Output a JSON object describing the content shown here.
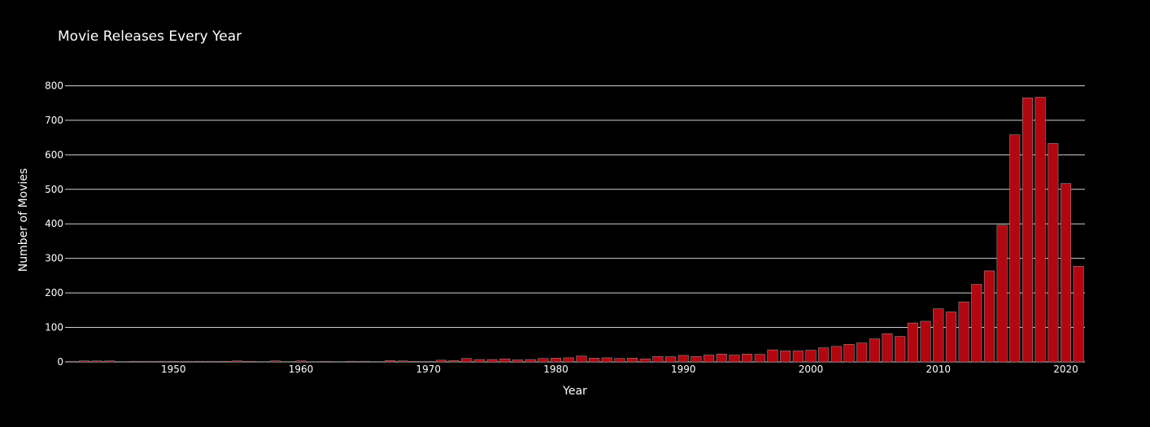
{
  "colors": {
    "background": "#000000",
    "bar": "#b20710",
    "grid": "#d0d0d0",
    "text": "#ffffff"
  },
  "chart_data": {
    "type": "bar",
    "title": "Movie Releases Every Year",
    "xlabel": "Year",
    "ylabel": "Number of Movies",
    "xlim": [
      1942,
      2021.5
    ],
    "ylim": [
      0,
      860
    ],
    "xticks": [
      1950,
      1960,
      1970,
      1980,
      1990,
      2000,
      2010,
      2020
    ],
    "yticks": [
      0,
      100,
      200,
      300,
      400,
      500,
      600,
      700,
      800
    ],
    "grid": true,
    "x": [
      1942,
      1943,
      1944,
      1945,
      1946,
      1947,
      1948,
      1949,
      1950,
      1951,
      1952,
      1953,
      1954,
      1955,
      1956,
      1957,
      1958,
      1959,
      1960,
      1961,
      1962,
      1963,
      1964,
      1965,
      1966,
      1967,
      1968,
      1969,
      1970,
      1971,
      1972,
      1973,
      1974,
      1975,
      1976,
      1977,
      1978,
      1979,
      1980,
      1981,
      1982,
      1983,
      1984,
      1985,
      1986,
      1987,
      1988,
      1989,
      1990,
      1991,
      1992,
      1993,
      1994,
      1995,
      1996,
      1997,
      1998,
      1999,
      2000,
      2001,
      2002,
      2003,
      2004,
      2005,
      2006,
      2007,
      2008,
      2009,
      2010,
      2011,
      2012,
      2013,
      2014,
      2015,
      2016,
      2017,
      2018,
      2019,
      2020,
      2021
    ],
    "values": [
      2,
      3,
      3,
      3,
      1,
      2,
      2,
      2,
      2,
      2,
      2,
      2,
      2,
      3,
      2,
      1,
      3,
      1,
      3,
      1,
      2,
      1,
      2,
      2,
      1,
      4,
      3,
      2,
      2,
      5,
      4,
      10,
      7,
      7,
      9,
      6,
      7,
      10,
      11,
      12,
      17,
      11,
      12,
      10,
      11,
      9,
      16,
      15,
      19,
      16,
      20,
      23,
      20,
      23,
      22,
      35,
      32,
      32,
      34,
      41,
      45,
      51,
      55,
      67,
      82,
      74,
      113,
      118,
      154,
      145,
      174,
      225,
      264,
      396,
      658,
      765,
      767,
      633,
      517,
      277
    ]
  }
}
